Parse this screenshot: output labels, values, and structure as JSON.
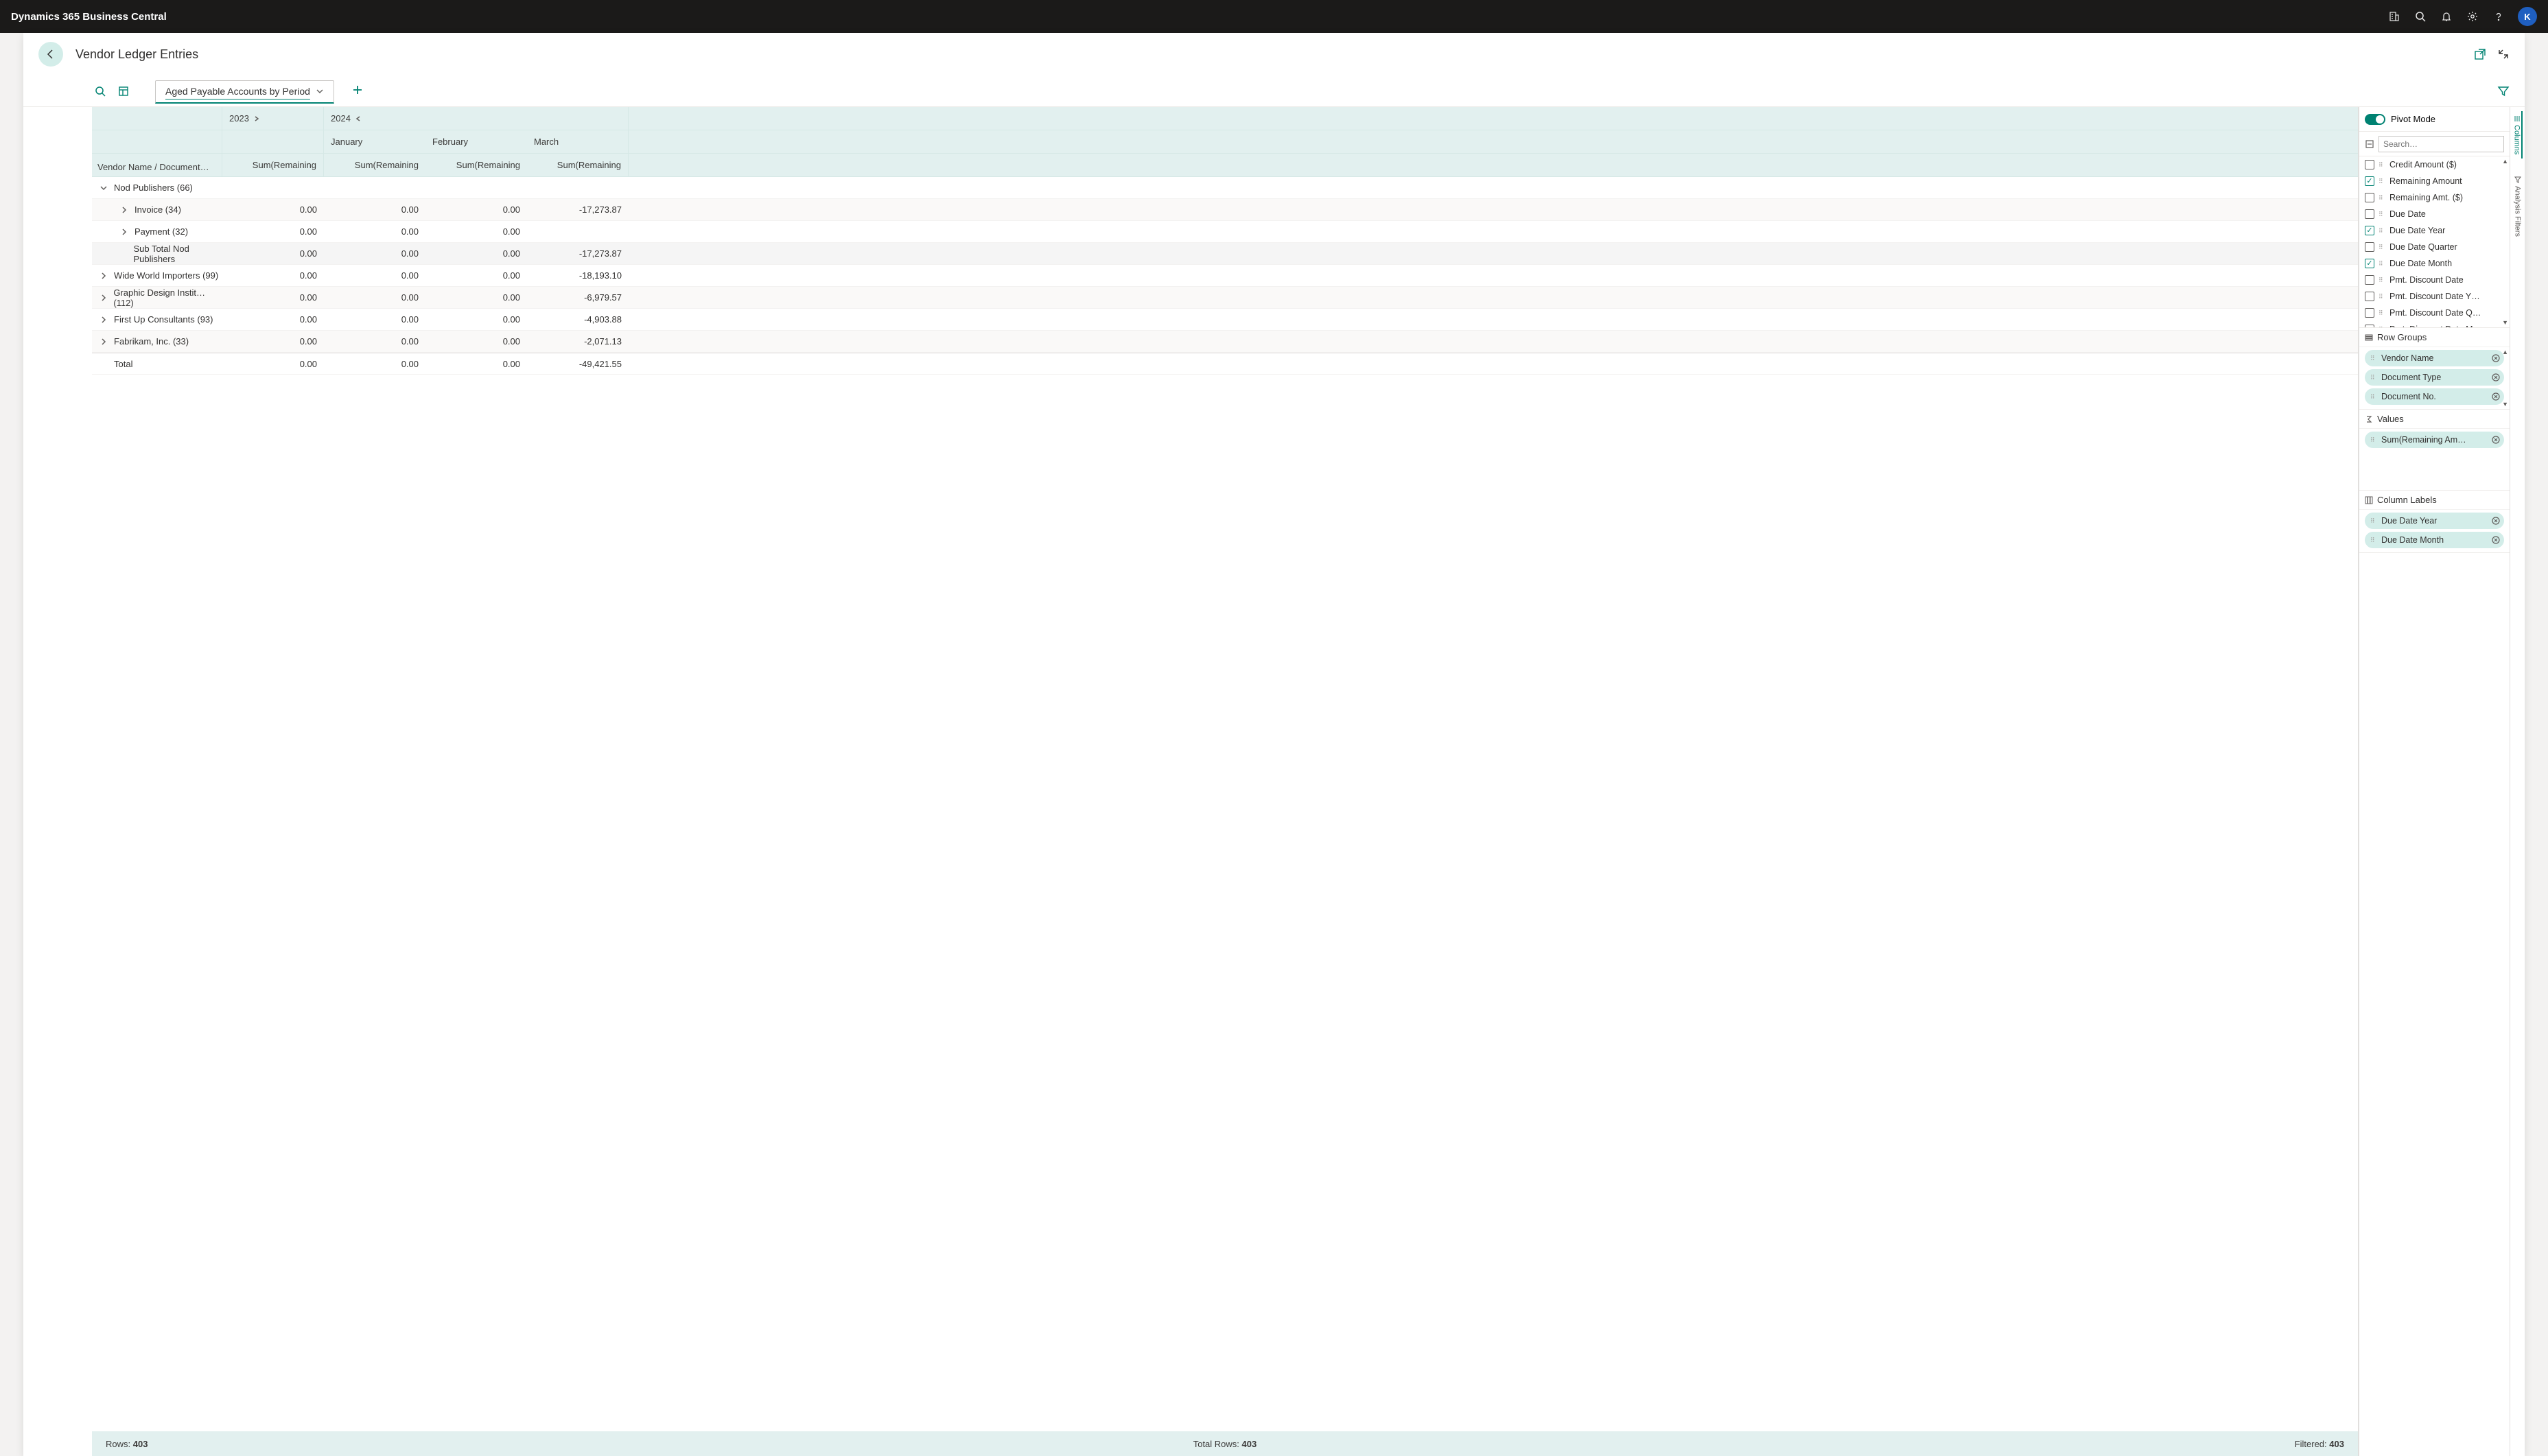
{
  "app": {
    "title": "Dynamics 365 Business Central",
    "avatar_letter": "K"
  },
  "page": {
    "title": "Vendor Ledger Entries"
  },
  "analysis": {
    "tab_label": "Aged Payable Accounts by Period"
  },
  "columns": {
    "first_header": "Vendor Name / Document…",
    "years": [
      {
        "label": "2023",
        "dir": "right",
        "months": [
          {
            "label": "",
            "measure": "Sum(Remaining"
          }
        ]
      },
      {
        "label": "2024",
        "dir": "left",
        "months": [
          {
            "label": "January",
            "measure": "Sum(Remaining"
          },
          {
            "label": "February",
            "measure": "Sum(Remaining"
          },
          {
            "label": "March",
            "measure": "Sum(Remaining"
          }
        ]
      }
    ]
  },
  "rows": [
    {
      "type": "group",
      "expanded": true,
      "indent": 0,
      "label": "Nod Publishers (66)",
      "values": [
        "",
        "",
        "",
        ""
      ]
    },
    {
      "type": "leaf",
      "expanded": false,
      "indent": 1,
      "expandable": true,
      "label": "Invoice (34)",
      "values": [
        "0.00",
        "0.00",
        "0.00",
        "-17,273.87"
      ]
    },
    {
      "type": "leaf",
      "expanded": false,
      "indent": 1,
      "expandable": true,
      "label": "Payment (32)",
      "values": [
        "0.00",
        "0.00",
        "0.00",
        ""
      ]
    },
    {
      "type": "subtotal",
      "indent": 1,
      "label": "Sub Total Nod Publishers",
      "values": [
        "0.00",
        "0.00",
        "0.00",
        "-17,273.87"
      ]
    },
    {
      "type": "group",
      "expanded": false,
      "indent": 0,
      "label": "Wide World Importers (99)",
      "values": [
        "0.00",
        "0.00",
        "0.00",
        "-18,193.10"
      ]
    },
    {
      "type": "group",
      "expanded": false,
      "indent": 0,
      "label": "Graphic Design Instit… (112)",
      "values": [
        "0.00",
        "0.00",
        "0.00",
        "-6,979.57"
      ]
    },
    {
      "type": "group",
      "expanded": false,
      "indent": 0,
      "label": "First Up Consultants (93)",
      "values": [
        "0.00",
        "0.00",
        "0.00",
        "-4,903.88"
      ]
    },
    {
      "type": "group",
      "expanded": false,
      "indent": 0,
      "label": "Fabrikam, Inc. (33)",
      "values": [
        "0.00",
        "0.00",
        "0.00",
        "-2,071.13"
      ]
    },
    {
      "type": "total",
      "indent": 0,
      "label": "Total",
      "values": [
        "0.00",
        "0.00",
        "0.00",
        "-49,421.55"
      ]
    }
  ],
  "status": {
    "rows_label": "Rows:",
    "rows_value": "403",
    "total_rows_label": "Total Rows:",
    "total_rows_value": "403",
    "filtered_label": "Filtered:",
    "filtered_value": "403"
  },
  "pivot": {
    "mode_label": "Pivot Mode",
    "search_placeholder": "Search…",
    "fields": [
      {
        "label": "Credit Amount ($)",
        "checked": false
      },
      {
        "label": "Remaining Amount",
        "checked": true
      },
      {
        "label": "Remaining Amt. ($)",
        "checked": false
      },
      {
        "label": "Due Date",
        "checked": false
      },
      {
        "label": "Due Date Year",
        "checked": true
      },
      {
        "label": "Due Date Quarter",
        "checked": false
      },
      {
        "label": "Due Date Month",
        "checked": true
      },
      {
        "label": "Pmt. Discount Date",
        "checked": false
      },
      {
        "label": "Pmt. Discount Date Y…",
        "checked": false
      },
      {
        "label": "Pmt. Discount Date Q…",
        "checked": false
      },
      {
        "label": "Pmt. Discount Date M…",
        "checked": false
      }
    ],
    "row_groups_label": "Row Groups",
    "row_groups": [
      "Vendor Name",
      "Document Type",
      "Document No."
    ],
    "values_label": "Values",
    "values": [
      "Sum(Remaining Am…"
    ],
    "column_labels_label": "Column Labels",
    "column_labels": [
      "Due Date Year",
      "Due Date Month"
    ]
  },
  "vtabs": {
    "columns": "Columns",
    "analysis_filters": "Analysis Filters"
  },
  "colors": {
    "accent": "#008272",
    "header_bg": "#e2f0ef",
    "chip_bg": "#d3ede9"
  }
}
